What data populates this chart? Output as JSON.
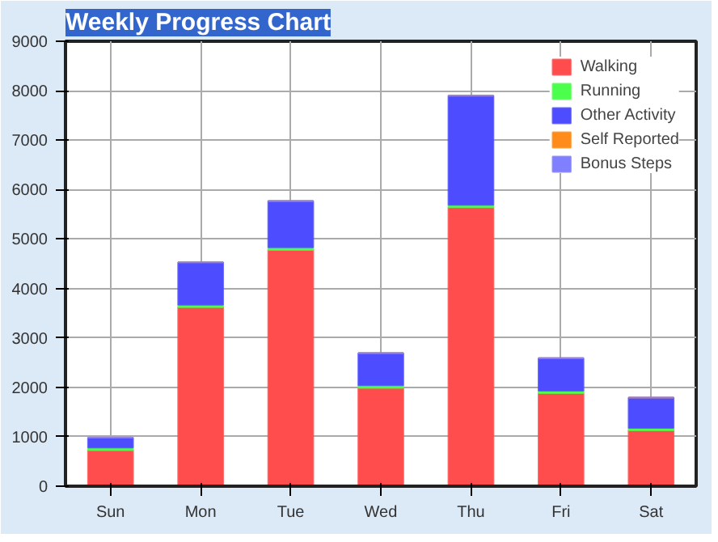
{
  "chart_data": {
    "type": "bar",
    "title": "Weekly Progress Chart",
    "stacked": true,
    "categories": [
      "Sun",
      "Mon",
      "Tue",
      "Wed",
      "Thu",
      "Fri",
      "Sat"
    ],
    "series": [
      {
        "name": "Walking",
        "color": "#ff4d4d",
        "values": [
          730,
          3620,
          4780,
          1990,
          5640,
          1880,
          1130
        ]
      },
      {
        "name": "Running",
        "color": "#4dff4d",
        "values": [
          50,
          50,
          50,
          50,
          50,
          50,
          50
        ]
      },
      {
        "name": "Other Activity",
        "color": "#4d4dff",
        "values": [
          200,
          860,
          940,
          650,
          2210,
          660,
          610
        ]
      },
      {
        "name": "Self Reported",
        "color": "#ff8c1a",
        "values": [
          0,
          0,
          0,
          0,
          0,
          0,
          0
        ]
      },
      {
        "name": "Bonus Steps",
        "color": "#8080ff",
        "values": [
          0,
          0,
          0,
          0,
          0,
          0,
          0
        ]
      }
    ],
    "ylim": [
      0,
      9000
    ],
    "yticks": [
      0,
      1000,
      2000,
      3000,
      4000,
      5000,
      6000,
      7000,
      8000,
      9000
    ],
    "grid": true,
    "legend": "top right"
  }
}
